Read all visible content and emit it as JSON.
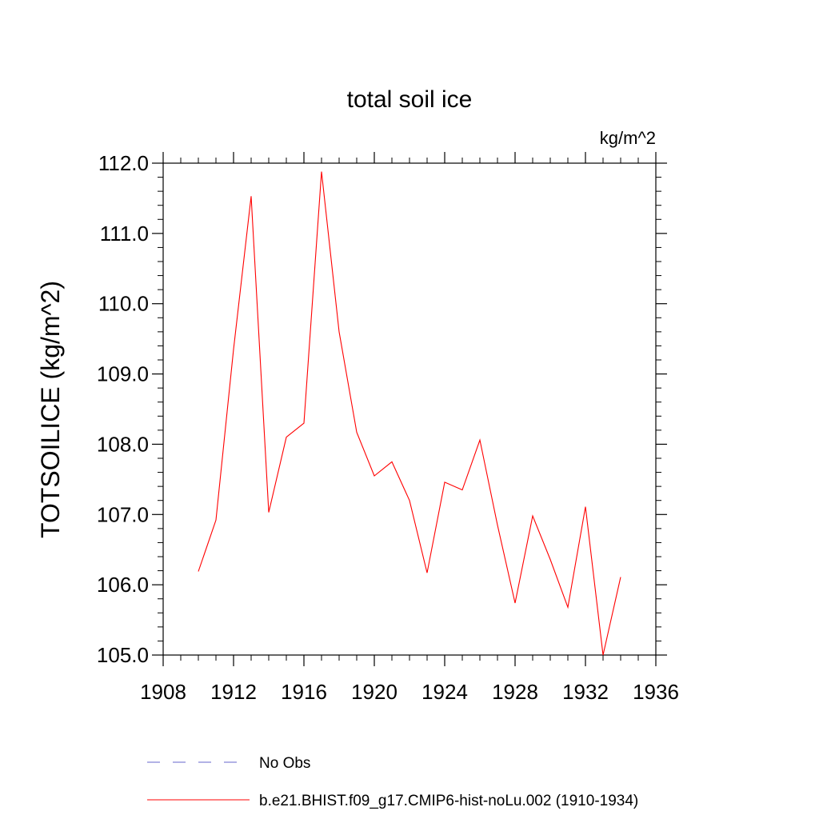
{
  "chart_data": {
    "type": "line",
    "title": "total soil ice",
    "units_label": "kg/m^2",
    "ylabel": "TOTSOILICE  (kg/m^2)",
    "xlabel": "",
    "xlim": [
      1908,
      1936
    ],
    "ylim": [
      105.0,
      112.0
    ],
    "x_ticks": [
      "1908",
      "1912",
      "1916",
      "1920",
      "1924",
      "1928",
      "1932",
      "1936"
    ],
    "y_ticks": [
      "105.0",
      "106.0",
      "107.0",
      "108.0",
      "109.0",
      "110.0",
      "111.0",
      "112.0"
    ],
    "grid": false,
    "legend_position": "bottom",
    "series": [
      {
        "name": "b.e21.BHIST.f09_g17.CMIP6-hist-noLu.002 (1910-1934)",
        "color": "#ff0000",
        "dash": "solid",
        "x": [
          1910,
          1911,
          1912,
          1913,
          1914,
          1915,
          1916,
          1917,
          1918,
          1919,
          1920,
          1921,
          1922,
          1923,
          1924,
          1925,
          1926,
          1927,
          1928,
          1929,
          1930,
          1931,
          1932,
          1933,
          1934
        ],
        "y": [
          106.19,
          106.92,
          109.35,
          111.53,
          107.03,
          108.1,
          108.3,
          111.88,
          109.6,
          108.17,
          107.55,
          107.75,
          107.2,
          106.17,
          107.46,
          107.35,
          108.06,
          106.85,
          105.74,
          106.98,
          106.36,
          105.68,
          107.11,
          105.0,
          106.11
        ]
      }
    ],
    "legend": [
      {
        "label": "No Obs",
        "color": "#6666cc",
        "dash": "dashed"
      },
      {
        "label": "b.e21.BHIST.f09_g17.CMIP6-hist-noLu.002 (1910-1934)",
        "color": "#ff0000",
        "dash": "solid"
      }
    ]
  }
}
